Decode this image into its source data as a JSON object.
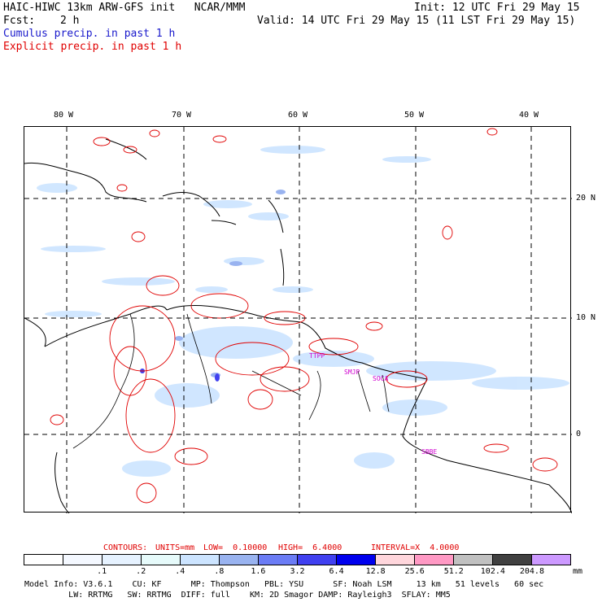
{
  "header": {
    "model": "HAIC-HIWC 13km ARW-GFS init   NCAR/MMM",
    "init": "Init: 12 UTC Fri 29 May 15",
    "fcst_label": "Fcst:",
    "fcst_value": "2 h",
    "valid": "Valid: 14 UTC Fri 29 May 15 (11 LST Fri 29 May 15)",
    "field1": "Cumulus precip. in past 1 h",
    "field2": "Explicit precip. in past 1 h"
  },
  "map": {
    "lon_labels": [
      "80 W",
      "70 W",
      "60 W",
      "50 W",
      "40 W"
    ],
    "lat_labels": [
      "20 N",
      "10 N",
      "0"
    ],
    "sites": [
      "TTPP",
      "SMJP",
      "SOCA",
      "SBBE"
    ]
  },
  "contours": {
    "label": "CONTOURS:",
    "units": "UNITS=mm",
    "low": "LOW=  0.10000",
    "high": "HIGH=  6.4000",
    "interval": "INTERVAL=X  4.0000"
  },
  "colorbar": {
    "labels": [
      ".1",
      ".2",
      ".4",
      ".8",
      "1.6",
      "3.2",
      "6.4",
      "12.8",
      "25.6",
      "51.2",
      "102.4",
      "204.8"
    ],
    "unit": "mm",
    "colors": [
      "#ffffff",
      "#f4f8ff",
      "#e6f2ff",
      "#e6fafa",
      "#cce4ff",
      "#99b3f0",
      "#6b7cf5",
      "#4040f0",
      "#0000ee",
      "#ffd6dc",
      "#ff99c4",
      "#c0c0c0",
      "#404040",
      "#cc99ff"
    ]
  },
  "footer": {
    "line1": "Model Info: V3.6.1    CU: KF      MP: Thompson   PBL: YSU      SF: Noah LSM     13 km   51 levels   60 sec",
    "line2": "         LW: RRTMG   SW: RRTMG  DIFF: full    KM: 2D Smagor DAMP: Rayleigh3  SFLAY: MM5"
  }
}
